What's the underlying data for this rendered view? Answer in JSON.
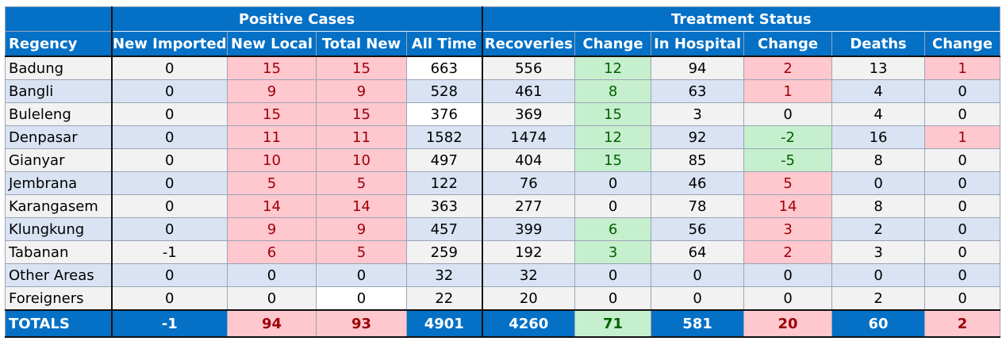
{
  "headers": {
    "group_positive": "Positive Cases",
    "group_treatment": "Treatment Status",
    "columns": [
      "Regency",
      "New Imported",
      "New Local",
      "Total New",
      "All Time",
      "Recoveries",
      "Change",
      "In Hospital",
      "Change",
      "Deaths",
      "Change"
    ]
  },
  "rows": [
    {
      "regency": "Badung",
      "new_imported": "0",
      "new_local": "15",
      "total_new": "15",
      "all_time": "663",
      "recoveries": "556",
      "rec_change": "12",
      "in_hospital": "94",
      "hosp_change": "2",
      "deaths": "13",
      "death_change": "1"
    },
    {
      "regency": "Bangli",
      "new_imported": "0",
      "new_local": "9",
      "total_new": "9",
      "all_time": "528",
      "recoveries": "461",
      "rec_change": "8",
      "in_hospital": "63",
      "hosp_change": "1",
      "deaths": "4",
      "death_change": "0"
    },
    {
      "regency": "Buleleng",
      "new_imported": "0",
      "new_local": "15",
      "total_new": "15",
      "all_time": "376",
      "recoveries": "369",
      "rec_change": "15",
      "in_hospital": "3",
      "hosp_change": "0",
      "deaths": "4",
      "death_change": "0"
    },
    {
      "regency": "Denpasar",
      "new_imported": "0",
      "new_local": "11",
      "total_new": "11",
      "all_time": "1582",
      "recoveries": "1474",
      "rec_change": "12",
      "in_hospital": "92",
      "hosp_change": "-2",
      "deaths": "16",
      "death_change": "1"
    },
    {
      "regency": "Gianyar",
      "new_imported": "0",
      "new_local": "10",
      "total_new": "10",
      "all_time": "497",
      "recoveries": "404",
      "rec_change": "15",
      "in_hospital": "85",
      "hosp_change": "-5",
      "deaths": "8",
      "death_change": "0"
    },
    {
      "regency": "Jembrana",
      "new_imported": "0",
      "new_local": "5",
      "total_new": "5",
      "all_time": "122",
      "recoveries": "76",
      "rec_change": "0",
      "in_hospital": "46",
      "hosp_change": "5",
      "deaths": "0",
      "death_change": "0"
    },
    {
      "regency": "Karangasem",
      "new_imported": "0",
      "new_local": "14",
      "total_new": "14",
      "all_time": "363",
      "recoveries": "277",
      "rec_change": "0",
      "in_hospital": "78",
      "hosp_change": "14",
      "deaths": "8",
      "death_change": "0"
    },
    {
      "regency": "Klungkung",
      "new_imported": "0",
      "new_local": "9",
      "total_new": "9",
      "all_time": "457",
      "recoveries": "399",
      "rec_change": "6",
      "in_hospital": "56",
      "hosp_change": "3",
      "deaths": "2",
      "death_change": "0"
    },
    {
      "regency": "Tabanan",
      "new_imported": "-1",
      "new_local": "6",
      "total_new": "5",
      "all_time": "259",
      "recoveries": "192",
      "rec_change": "3",
      "in_hospital": "64",
      "hosp_change": "2",
      "deaths": "3",
      "death_change": "0"
    },
    {
      "regency": "Other Areas",
      "new_imported": "0",
      "new_local": "0",
      "total_new": "0",
      "all_time": "32",
      "recoveries": "32",
      "rec_change": "0",
      "in_hospital": "0",
      "hosp_change": "0",
      "deaths": "0",
      "death_change": "0"
    },
    {
      "regency": "Foreigners",
      "new_imported": "0",
      "new_local": "0",
      "total_new": "0",
      "all_time": "22",
      "recoveries": "20",
      "rec_change": "0",
      "in_hospital": "0",
      "hosp_change": "0",
      "deaths": "2",
      "death_change": "0"
    }
  ],
  "totals": {
    "regency": "TOTALS",
    "new_imported": "-1",
    "new_local": "94",
    "total_new": "93",
    "all_time": "4901",
    "recoveries": "4260",
    "rec_change": "71",
    "in_hospital": "581",
    "hosp_change": "20",
    "deaths": "60",
    "death_change": "2"
  },
  "colors": {
    "header_blue": "#0470c6",
    "increase_fill": "#ffc7ce",
    "increase_text": "#9c0006",
    "decrease_fill": "#c6efce",
    "decrease_text": "#006100",
    "row_gray": "#f2f2f2",
    "row_blue": "#dae3f3"
  }
}
